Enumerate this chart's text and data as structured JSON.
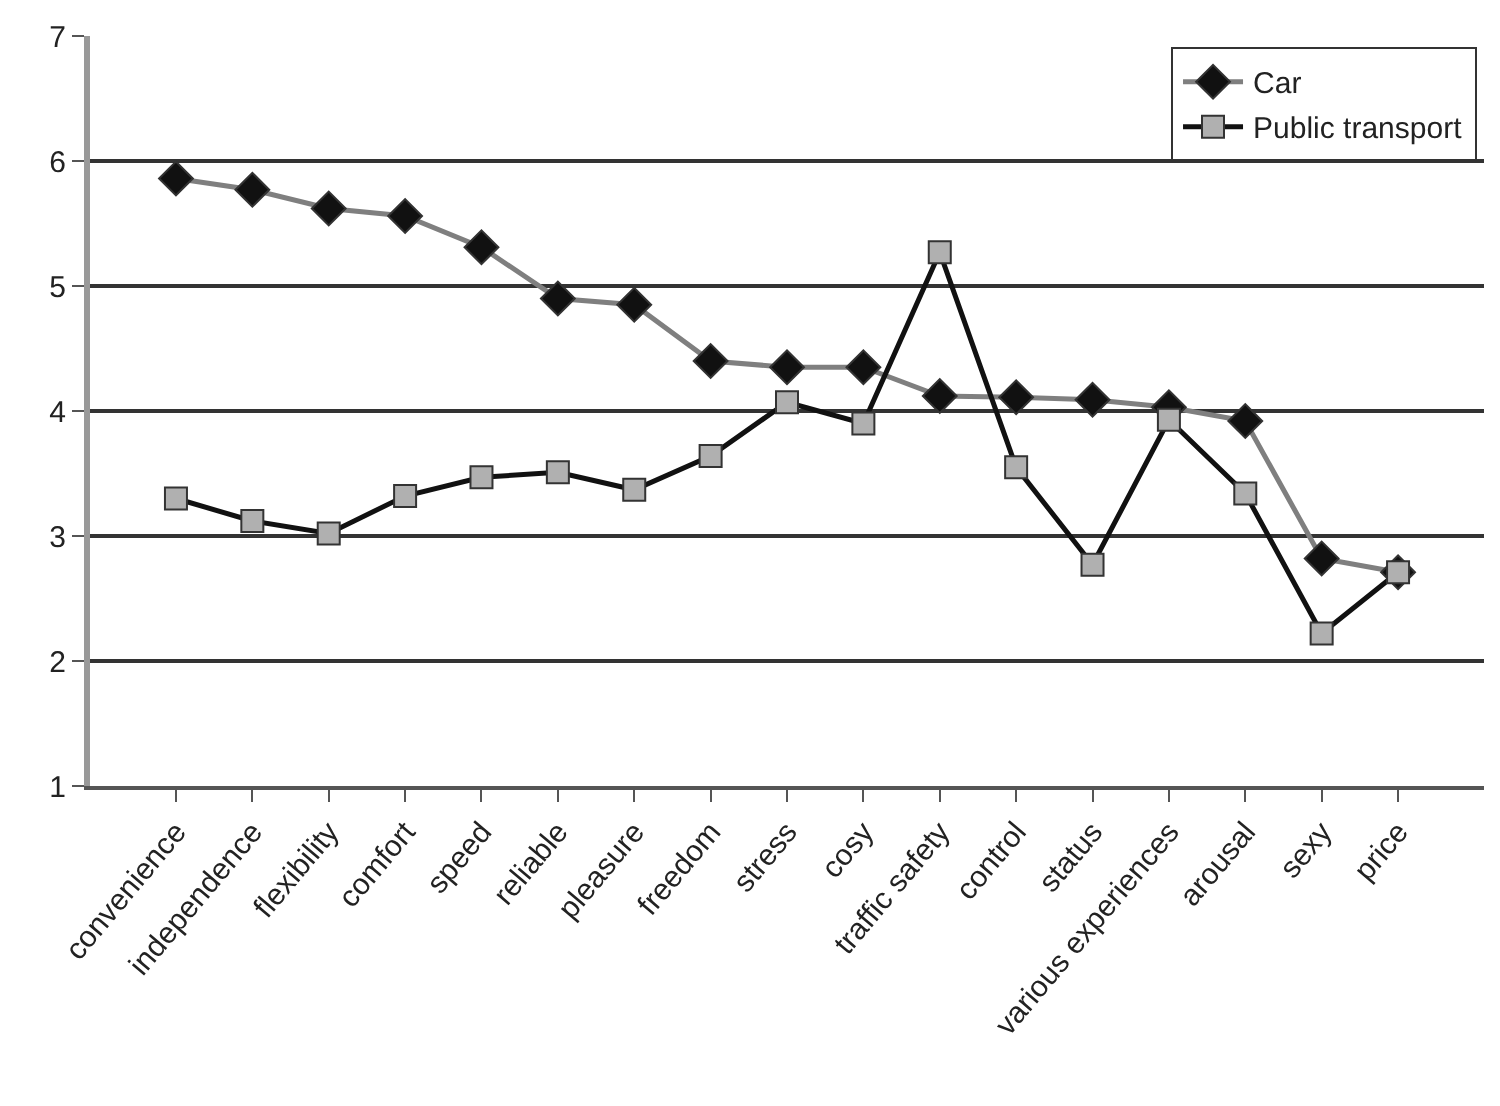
{
  "chart_data": {
    "type": "line",
    "categories": [
      "convenience",
      "independence",
      "flexibility",
      "comfort",
      "speed",
      "reliable",
      "pleasure",
      "freedom",
      "stress",
      "cosy",
      "traffic safety",
      "control",
      "status",
      "various experiences",
      "arousal",
      "sexy",
      "price"
    ],
    "series": [
      {
        "name": "Car",
        "color": "#7f7f7f",
        "colors": [
          "#111111",
          "#111111",
          "#111111",
          "#111111",
          "#111111",
          "#111111",
          "#111111",
          "#111111",
          "#111111",
          "#111111",
          "#111111",
          "#111111",
          "#111111",
          "#111111",
          "#111111",
          "#111111",
          "#111111"
        ],
        "marker": "diamond",
        "values": [
          5.86,
          5.77,
          5.62,
          5.56,
          5.31,
          4.9,
          4.85,
          4.4,
          4.35,
          4.35,
          4.12,
          4.11,
          4.09,
          4.03,
          3.92,
          2.82,
          2.71
        ]
      },
      {
        "name": "Public transport",
        "color": "#111111",
        "colors": [
          "#b0b0b0",
          "#b0b0b0",
          "#b0b0b0",
          "#b0b0b0",
          "#b0b0b0",
          "#b0b0b0",
          "#b0b0b0",
          "#b0b0b0",
          "#b0b0b0",
          "#b0b0b0",
          "#b0b0b0",
          "#b0b0b0",
          "#b0b0b0",
          "#b0b0b0",
          "#b0b0b0",
          "#b0b0b0",
          "#b0b0b0"
        ],
        "marker": "square",
        "values": [
          3.3,
          3.12,
          3.02,
          3.32,
          3.47,
          3.51,
          3.37,
          3.64,
          4.07,
          3.9,
          5.27,
          3.55,
          2.77,
          3.93,
          3.34,
          2.22,
          2.71
        ]
      }
    ],
    "ylim": [
      1,
      7
    ],
    "yticks": [
      1,
      2,
      3,
      4,
      5,
      6,
      7
    ],
    "grid": "y",
    "legend": "top right",
    "line_style": "solid"
  }
}
